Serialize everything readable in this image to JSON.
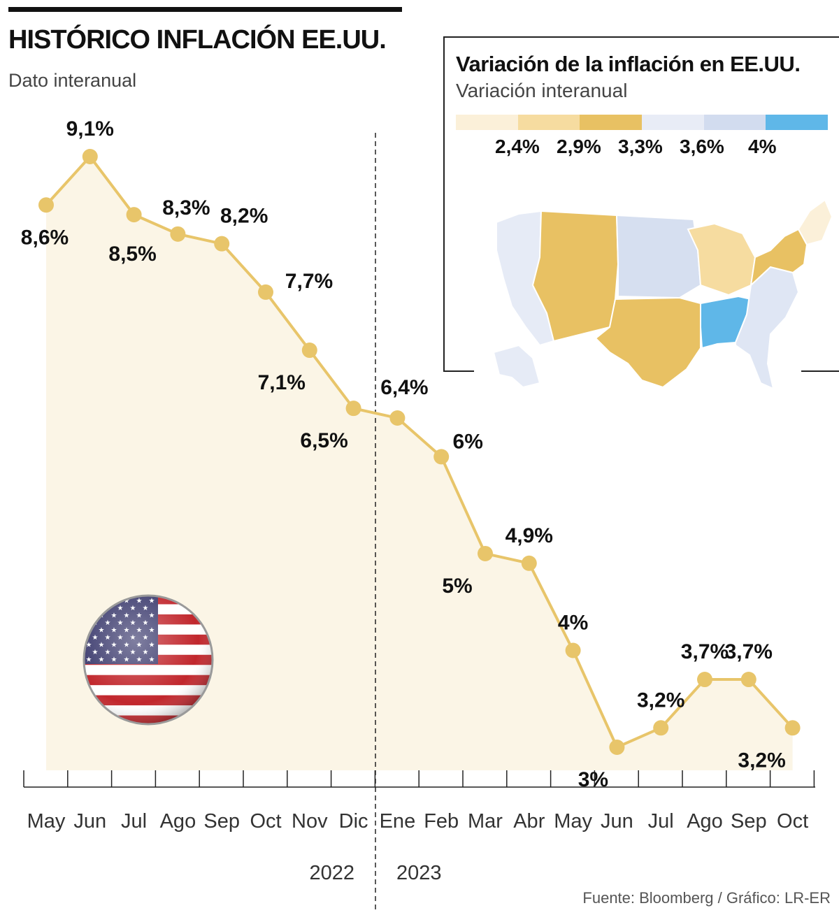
{
  "header": {
    "title": "HISTÓRICO INFLACIÓN EE.UU.",
    "subtitle": "Dato interanual"
  },
  "source": "Fuente: Bloomberg / Gráfico: LR-ER",
  "colors": {
    "line": "#e8c56a",
    "area": "#fbf5e6",
    "text": "#111111"
  },
  "chart_data": {
    "type": "line",
    "title": "HISTÓRICO INFLACIÓN EE.UU.",
    "subtitle": "Dato interanual",
    "categories": [
      "May",
      "Jun",
      "Jul",
      "Ago",
      "Sep",
      "Oct",
      "Nov",
      "Dic",
      "Ene",
      "Feb",
      "Mar",
      "Abr",
      "May",
      "Jun",
      "Jul",
      "Ago",
      "Sep",
      "Oct"
    ],
    "values": [
      8.6,
      9.1,
      8.5,
      8.3,
      8.2,
      7.7,
      7.1,
      6.5,
      6.4,
      6.0,
      5.0,
      4.9,
      4.0,
      3.0,
      3.2,
      3.7,
      3.7,
      3.2
    ],
    "labels": [
      "8,6%",
      "9,1%",
      "8,5%",
      "8,3%",
      "8,2%",
      "7,7%",
      "7,1%",
      "6,5%",
      "6,4%",
      "6%",
      "5%",
      "4,9%",
      "4%",
      "3%",
      "3,2%",
      "3,7%",
      "3,7%",
      "3,2%"
    ],
    "years": [
      {
        "label": "2022",
        "from_index": 0,
        "to_index": 7
      },
      {
        "label": "2023",
        "from_index": 8,
        "to_index": 17
      }
    ],
    "year_divider_after_index": 7,
    "xlabel": "",
    "ylabel": "",
    "grid": false
  },
  "inset": {
    "title": "Variación de la inflación en EE.UU.",
    "subtitle": "Variación interanual",
    "legend": {
      "colors": [
        "#fbf0d9",
        "#f6dca0",
        "#e8c163",
        "#e8ecf6",
        "#d2dcef",
        "#5fb7e8"
      ],
      "labels": [
        "2,4%",
        "2,9%",
        "3,3%",
        "3,6%",
        "4%"
      ]
    },
    "map_region_colors": {
      "west_coast": "#e6ebf6",
      "mountain": "#e8c163",
      "south_central": "#e8c163",
      "northeast_ny_pa": "#e8c163",
      "plains": "#d6dff0",
      "great_lakes": "#f6dca0",
      "east_south_central": "#5fb7e8",
      "southeast": "#dfe6f4",
      "new_england": "#fbf0d9",
      "alaska": "#e6ebf6"
    }
  }
}
